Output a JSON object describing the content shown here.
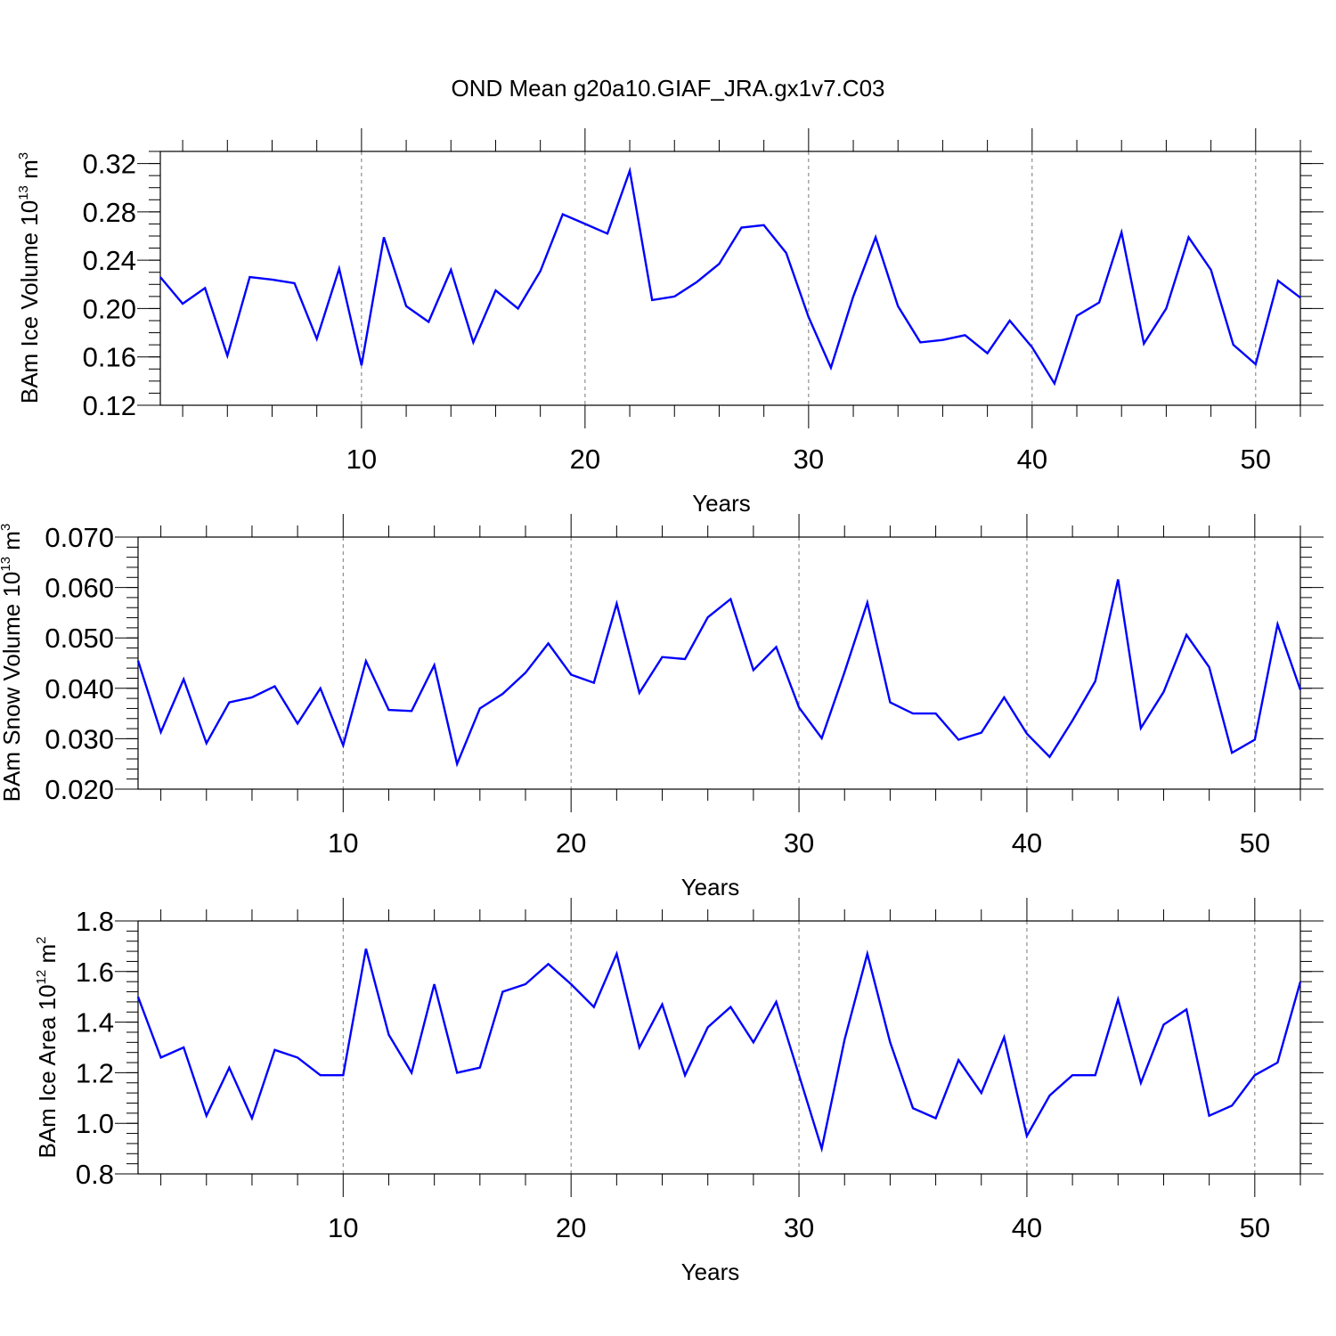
{
  "title": "OND Mean g20a10.GIAF_JRA.gx1v7.C03",
  "colors": {
    "line": "#0000ff",
    "axes": "#000000",
    "grid": "#777777"
  },
  "chart_data": [
    {
      "type": "line",
      "xlabel": "Years",
      "ylabel": {
        "main": "BAm Ice Volume 10",
        "exponent": "13",
        "unit": " m",
        "unit_exponent": "3"
      },
      "xlim": [
        1,
        52
      ],
      "ylim": [
        0.12,
        0.33
      ],
      "xticks": [
        10,
        20,
        30,
        40,
        50
      ],
      "xtick_labels": [
        "10",
        "20",
        "30",
        "40",
        "50"
      ],
      "yticks": [
        0.12,
        0.16,
        0.2,
        0.24,
        0.28,
        0.32
      ],
      "ytick_labels": [
        "0.12",
        "0.16",
        "0.20",
        "0.24",
        "0.28",
        "0.32"
      ],
      "yminor_step": 0.01,
      "x": [
        1,
        2,
        3,
        4,
        5,
        6,
        7,
        8,
        9,
        10,
        11,
        12,
        13,
        14,
        15,
        16,
        17,
        18,
        19,
        20,
        21,
        22,
        23,
        24,
        25,
        26,
        27,
        28,
        29,
        30,
        31,
        32,
        33,
        34,
        35,
        36,
        37,
        38,
        39,
        40,
        41,
        42,
        43,
        44,
        45,
        46,
        47,
        48,
        49,
        50,
        51,
        52
      ],
      "values": [
        0.226,
        0.204,
        0.217,
        0.161,
        0.226,
        0.224,
        0.221,
        0.175,
        0.233,
        0.153,
        0.259,
        0.202,
        0.189,
        0.232,
        0.172,
        0.215,
        0.2,
        0.231,
        0.278,
        0.27,
        0.262,
        0.314,
        0.207,
        0.21,
        0.222,
        0.237,
        0.267,
        0.269,
        0.246,
        0.193,
        0.151,
        0.21,
        0.259,
        0.202,
        0.172,
        0.174,
        0.178,
        0.163,
        0.19,
        0.168,
        0.138,
        0.194,
        0.205,
        0.263,
        0.171,
        0.2,
        0.259,
        0.232,
        0.17,
        0.154,
        0.223,
        0.209
      ]
    },
    {
      "type": "line",
      "xlabel": "Years",
      "ylabel": {
        "main": "BAm Snow Volume 10",
        "exponent": "13",
        "unit": " m",
        "unit_exponent": "3"
      },
      "xlim": [
        1,
        52
      ],
      "ylim": [
        0.02,
        0.07
      ],
      "xticks": [
        10,
        20,
        30,
        40,
        50
      ],
      "xtick_labels": [
        "10",
        "20",
        "30",
        "40",
        "50"
      ],
      "yticks": [
        0.02,
        0.03,
        0.04,
        0.05,
        0.06,
        0.07
      ],
      "ytick_labels": [
        "0.020",
        "0.030",
        "0.040",
        "0.050",
        "0.060",
        "0.070"
      ],
      "yminor_step": 0.002,
      "x": [
        1,
        2,
        3,
        4,
        5,
        6,
        7,
        8,
        9,
        10,
        11,
        12,
        13,
        14,
        15,
        16,
        17,
        18,
        19,
        20,
        21,
        22,
        23,
        24,
        25,
        26,
        27,
        28,
        29,
        30,
        31,
        32,
        33,
        34,
        35,
        36,
        37,
        38,
        39,
        40,
        41,
        42,
        43,
        44,
        45,
        46,
        47,
        48,
        49,
        50,
        51,
        52
      ],
      "values": [
        0.0455,
        0.0313,
        0.0418,
        0.0291,
        0.0372,
        0.0382,
        0.0404,
        0.033,
        0.04,
        0.0287,
        0.0454,
        0.0357,
        0.0355,
        0.0446,
        0.025,
        0.036,
        0.0389,
        0.0431,
        0.0489,
        0.0427,
        0.0411,
        0.0568,
        0.0391,
        0.0462,
        0.0458,
        0.0541,
        0.0577,
        0.0436,
        0.0482,
        0.0362,
        0.0301,
        0.0432,
        0.057,
        0.0372,
        0.035,
        0.035,
        0.0298,
        0.0312,
        0.0382,
        0.031,
        0.0264,
        0.0336,
        0.0414,
        0.0616,
        0.0321,
        0.0393,
        0.0506,
        0.0442,
        0.0272,
        0.0298,
        0.0527,
        0.0397
      ]
    },
    {
      "type": "line",
      "xlabel": "Years",
      "ylabel": {
        "main": "BAm Ice Area 10",
        "exponent": "12",
        "unit": " m",
        "unit_exponent": "2"
      },
      "xlim": [
        1,
        52
      ],
      "ylim": [
        0.8,
        1.8
      ],
      "xticks": [
        10,
        20,
        30,
        40,
        50
      ],
      "xtick_labels": [
        "10",
        "20",
        "30",
        "40",
        "50"
      ],
      "yticks": [
        0.8,
        1.0,
        1.2,
        1.4,
        1.6,
        1.8
      ],
      "ytick_labels": [
        "0.8",
        "1.0",
        "1.2",
        "1.4",
        "1.6",
        "1.8"
      ],
      "yminor_step": 0.04,
      "x": [
        1,
        2,
        3,
        4,
        5,
        6,
        7,
        8,
        9,
        10,
        11,
        12,
        13,
        14,
        15,
        16,
        17,
        18,
        19,
        20,
        21,
        22,
        23,
        24,
        25,
        26,
        27,
        28,
        29,
        30,
        31,
        32,
        33,
        34,
        35,
        36,
        37,
        38,
        39,
        40,
        41,
        42,
        43,
        44,
        45,
        46,
        47,
        48,
        49,
        50,
        51,
        52
      ],
      "values": [
        1.5,
        1.26,
        1.3,
        1.03,
        1.22,
        1.02,
        1.29,
        1.26,
        1.19,
        1.19,
        1.69,
        1.35,
        1.2,
        1.55,
        1.2,
        1.22,
        1.52,
        1.55,
        1.63,
        1.55,
        1.46,
        1.67,
        1.3,
        1.47,
        1.19,
        1.38,
        1.46,
        1.32,
        1.48,
        1.19,
        0.9,
        1.33,
        1.67,
        1.32,
        1.06,
        1.02,
        1.25,
        1.12,
        1.34,
        0.95,
        1.11,
        1.19,
        1.19,
        1.49,
        1.16,
        1.39,
        1.45,
        1.03,
        1.07,
        1.19,
        1.24,
        1.56
      ]
    }
  ]
}
